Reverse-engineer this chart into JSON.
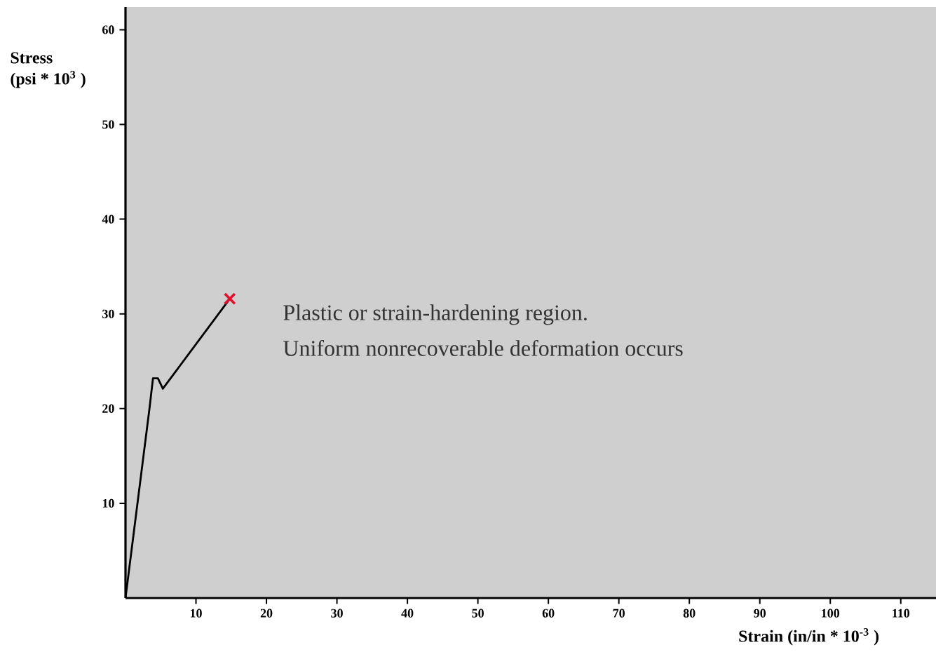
{
  "chart_data": {
    "type": "line",
    "xlabel": "Strain (in/in * 10$^{-3}$ )",
    "ylabel": "Stress (psi * 10$^{3}$ )",
    "annotations": [
      "Plastic or strain-hardening region.",
      "Uniform nonrecoverable deformation occurs"
    ],
    "xlim": [
      0,
      115
    ],
    "ylim": [
      0,
      62.4
    ],
    "xticks": [
      10,
      20,
      30,
      40,
      50,
      60,
      70,
      80,
      90,
      100,
      110
    ],
    "yticks": [
      10,
      20,
      30,
      40,
      50,
      60
    ],
    "series": [
      {
        "color": "#000000",
        "x": [
          0,
          3.4,
          3.9,
          4.6,
          5.3,
          14.8
        ],
        "values": [
          0,
          20,
          23.2,
          23.2,
          22.1,
          31.6
        ]
      },
      {
        "type": "scatter",
        "marker": "cross",
        "color": "#e0102a",
        "x": [
          14.8
        ],
        "values": [
          31.6
        ]
      }
    ]
  }
}
